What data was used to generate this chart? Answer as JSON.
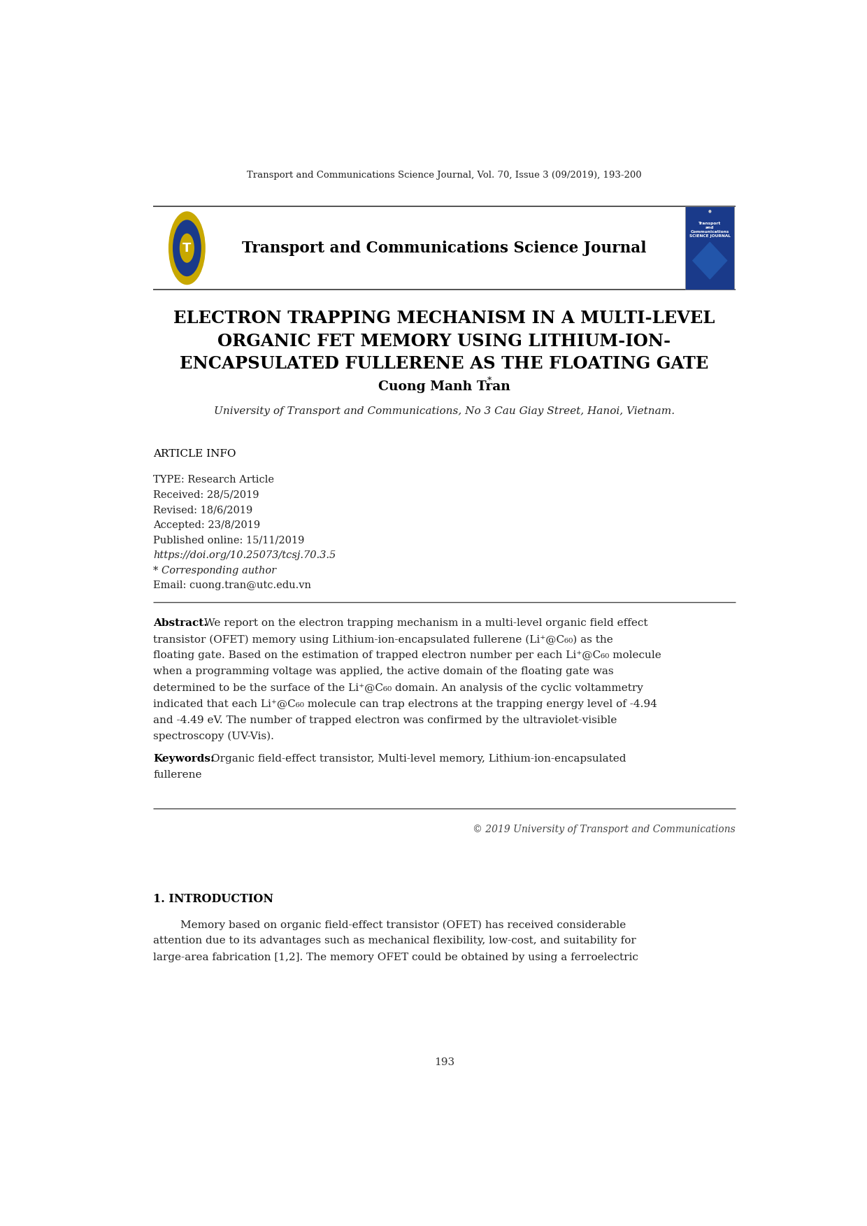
{
  "page_width": 12.4,
  "page_height": 17.53,
  "dpi": 100,
  "bg_color": "#ffffff",
  "top_citation": "Transport and Communications Science Journal, Vol. 70, Issue 3 (09/2019), 193-200",
  "journal_title": "Transport and Communications Science Journal",
  "article_title_line1": "ELECTRON TRAPPING MECHANISM IN A MULTI-LEVEL",
  "article_title_line2": "ORGANIC FET MEMORY USING LITHIUM-ION-",
  "article_title_line3": "ENCAPSULATED FULLERENE AS THE FLOATING GATE",
  "author": "Cuong Manh Tran",
  "author_star": "*",
  "affiliation": "University of Transport and Communications, No 3 Cau Giay Street, Hanoi, Vietnam.",
  "article_info_header": "ARTICLE INFO",
  "article_info_lines": [
    "TYPE: Research Article",
    "Received: 28/5/2019",
    "Revised: 18/6/2019",
    "Accepted: 23/8/2019",
    "Published online: 15/11/2019",
    "https://doi.org/10.25073/tcsj.70.3.5",
    "* Corresponding author",
    "Email: cuong.tran@utc.edu.vn"
  ],
  "abstract_label": "Abstract.",
  "abstract_body": "We report on the electron trapping mechanism in a multi-level organic field effect transistor (OFET) memory using Lithium-ion-encapsulated fullerene (Li⁺@C₆₀) as the floating gate. Based on the estimation of trapped electron number per each Li⁺@C₆₀ molecule when a programming voltage was applied, the active domain of the floating gate was determined to be the surface of the Li⁺@C₆₀ domain. An analysis of the cyclic voltammetry indicated that each Li⁺@C₆₀ molecule can trap electrons at the trapping energy level of -4.94 and -4.49 eV. The number of trapped electron was confirmed by the ultraviolet-visible spectroscopy (UV-Vis).",
  "keywords_label": "Keywords:",
  "keywords_body": " Organic field-effect transistor, Multi-level memory, Lithium-ion-encapsulated\nfullerene",
  "copyright_text": "© 2019 University of Transport and Communications",
  "intro_header": "1. INTRODUCTION",
  "intro_line1": "      Memory based on organic field-effect transistor (OFET) has received considerable",
  "intro_line2": "attention due to its advantages such as mechanical flexibility, low-cost, and suitability for",
  "intro_line3": "large-area fabrication [1,2]. The memory OFET could be obtained by using a ferroelectric",
  "page_number": "193",
  "lm": 0.067,
  "rm": 0.933,
  "line_color": "#444444",
  "logo_color_outer": "#c8a800",
  "logo_color_inner": "#1a3a8a",
  "cover_color_bg": "#1a3a8a",
  "cover_color_text": "#ffffff",
  "cover_color_yellow": "#f0c020"
}
